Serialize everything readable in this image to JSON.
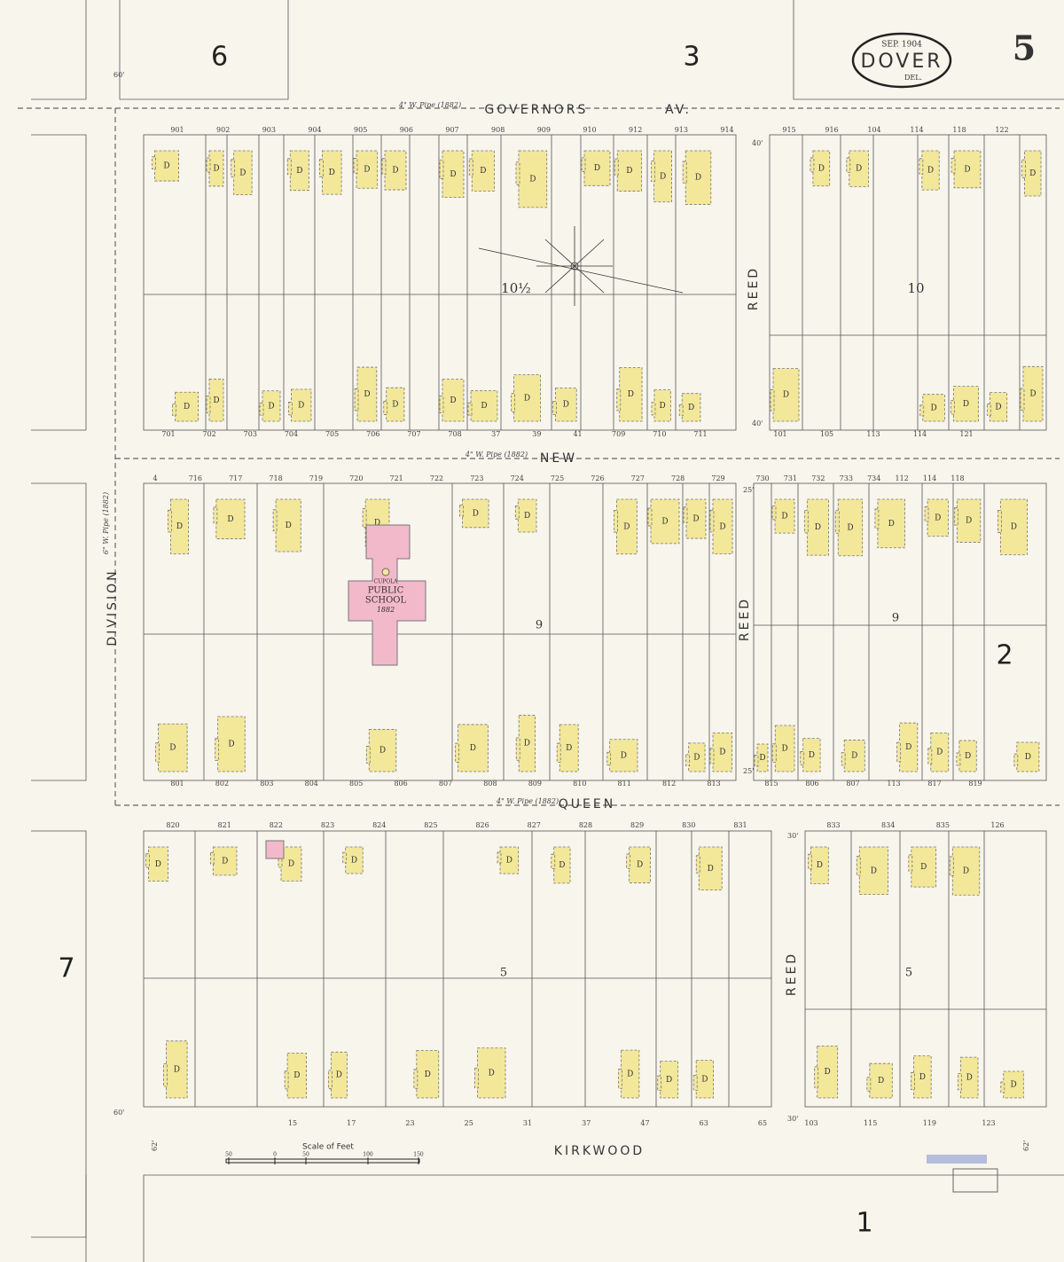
{
  "header": {
    "date": "SEP. 1904",
    "city": "DOVER",
    "state": "DEL.",
    "sheet": "5"
  },
  "adjacent_sheets": [
    "6",
    "3",
    "7",
    "2",
    "1"
  ],
  "streets": {
    "governors": "GOVERNORS",
    "av": "AV.",
    "new": "NEW",
    "queen": "QUEEN",
    "kirkwood": "KIRKWOOD",
    "division": "DIVISION",
    "reed": "REED"
  },
  "pipes": [
    "4\" W. Pipe (1882)",
    "4\" W. Pipe (1882)",
    "4\" W. Pipe (1882)",
    "6\" W. Pipe (1882)"
  ],
  "blocks": [
    "10½",
    "10",
    "9",
    "9",
    "5",
    "5"
  ],
  "school": {
    "cupola": "CUPOLA",
    "line1": "PUBLIC",
    "line2": "SCHOOL",
    "year": "1882"
  },
  "street_widths": [
    "60'",
    "40'",
    "40'",
    "25'",
    "25'",
    "30'",
    "30'",
    "60'",
    "62'",
    "62'"
  ],
  "scale": {
    "title": "Scale of Feet",
    "ticks": [
      "50",
      "0",
      "50",
      "100",
      "150"
    ]
  },
  "dwelling": "D",
  "addresses": {
    "governors_south_left": [
      "901",
      "902",
      "903",
      "904",
      "905",
      "906",
      "907",
      "908",
      "909",
      "910",
      "912",
      "913",
      "914"
    ],
    "governors_south_right": [
      "915",
      "916",
      "104",
      "114",
      "118",
      "122"
    ],
    "new_north_left": [
      "701",
      "702",
      "703",
      "704",
      "705",
      "706",
      "707",
      "708",
      "37",
      "39",
      "41",
      "709",
      "710",
      "711"
    ],
    "new_north_right": [
      "101",
      "105",
      "113",
      "114",
      "121"
    ],
    "new_south_left": [
      "4",
      "716",
      "717",
      "718",
      "719",
      "720",
      "721",
      "722",
      "723",
      "724",
      "725",
      "726",
      "727",
      "728",
      "729"
    ],
    "new_south_right": [
      "730",
      "731",
      "732",
      "733",
      "734",
      "112",
      "114",
      "118"
    ],
    "queen_north_left": [
      "801",
      "802",
      "803",
      "804",
      "805",
      "806",
      "807",
      "808",
      "809",
      "810",
      "811",
      "812",
      "813"
    ],
    "queen_north_right": [
      "815",
      "806",
      "807",
      "113",
      "817",
      "819"
    ],
    "queen_south_left": [
      "820",
      "821",
      "822",
      "823",
      "824",
      "825",
      "826",
      "827",
      "828",
      "829",
      "830",
      "831"
    ],
    "queen_south_right": [
      "833",
      "834",
      "835",
      "126"
    ],
    "kirkwood_north_left": [
      "15",
      "17",
      "23",
      "25",
      "31",
      "37",
      "47",
      "63",
      "65"
    ],
    "kirkwood_north_right": [
      "103",
      "115",
      "119",
      "123"
    ]
  }
}
